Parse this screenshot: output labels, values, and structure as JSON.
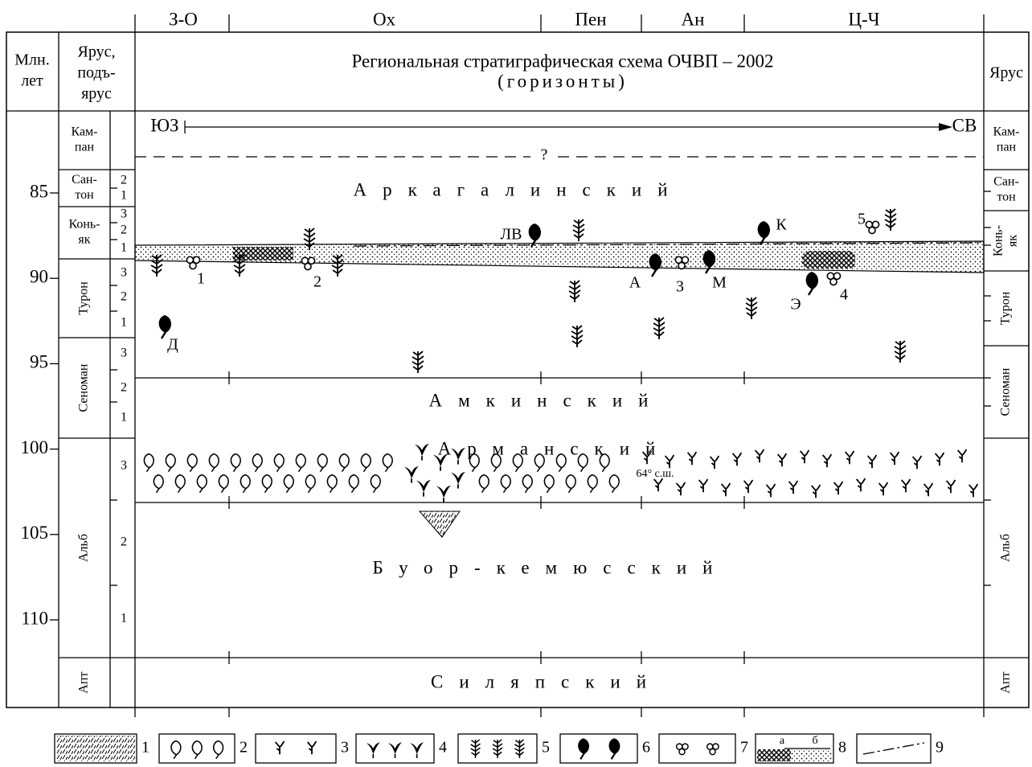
{
  "regions": [
    "З-О",
    "Ох",
    "Пен",
    "Ан",
    "Ц-Ч"
  ],
  "header": {
    "age": [
      "Млн.",
      "лет"
    ],
    "stage": [
      "Ярус,",
      "подъ-",
      "ярус"
    ],
    "title": [
      "Региональная стратиграфическая схема ОЧВП – 2002",
      "(горизонты)"
    ],
    "stage_right": "Ярус"
  },
  "age_ticks": [
    "85",
    "90",
    "95",
    "100",
    "105",
    "110"
  ],
  "stages_left": [
    [
      "Кам-",
      "пан"
    ],
    [
      "Сан-",
      "тон"
    ],
    [
      "Конь-",
      "як"
    ],
    [
      "Турон"
    ],
    [
      "Сеноман"
    ],
    [
      "Альб"
    ],
    [
      "Апт"
    ]
  ],
  "substages": [
    [
      "2",
      "1"
    ],
    [
      "3",
      "2",
      "1"
    ],
    [
      "3",
      "2",
      "1"
    ],
    [
      "3",
      "2",
      "1"
    ],
    [
      "3",
      "2",
      "1"
    ]
  ],
  "stages_right": [
    [
      "Кам-",
      "пан"
    ],
    [
      "Сан-",
      "тон"
    ],
    [
      "Конь-",
      "як"
    ],
    [
      "Турон"
    ],
    [
      "Сеноман"
    ],
    [
      "Альб"
    ],
    [
      "Апт"
    ]
  ],
  "direction": {
    "from": "ЮЗ",
    "to": "СВ"
  },
  "question": "?",
  "horizons": [
    "Аркагалинский",
    "Амкинский",
    "Арманский",
    "Буор-кемюсский",
    "Силяпский"
  ],
  "localities": [
    "ЛВ",
    "К",
    "5",
    "1",
    "2",
    "А",
    "3",
    "М",
    "Э",
    "4",
    "Д",
    "64° с.ш."
  ],
  "legend": [
    "1",
    "2",
    "3",
    "4",
    "5",
    "6",
    "7",
    "8",
    "9"
  ],
  "legend_sub": [
    "а",
    "б"
  ]
}
